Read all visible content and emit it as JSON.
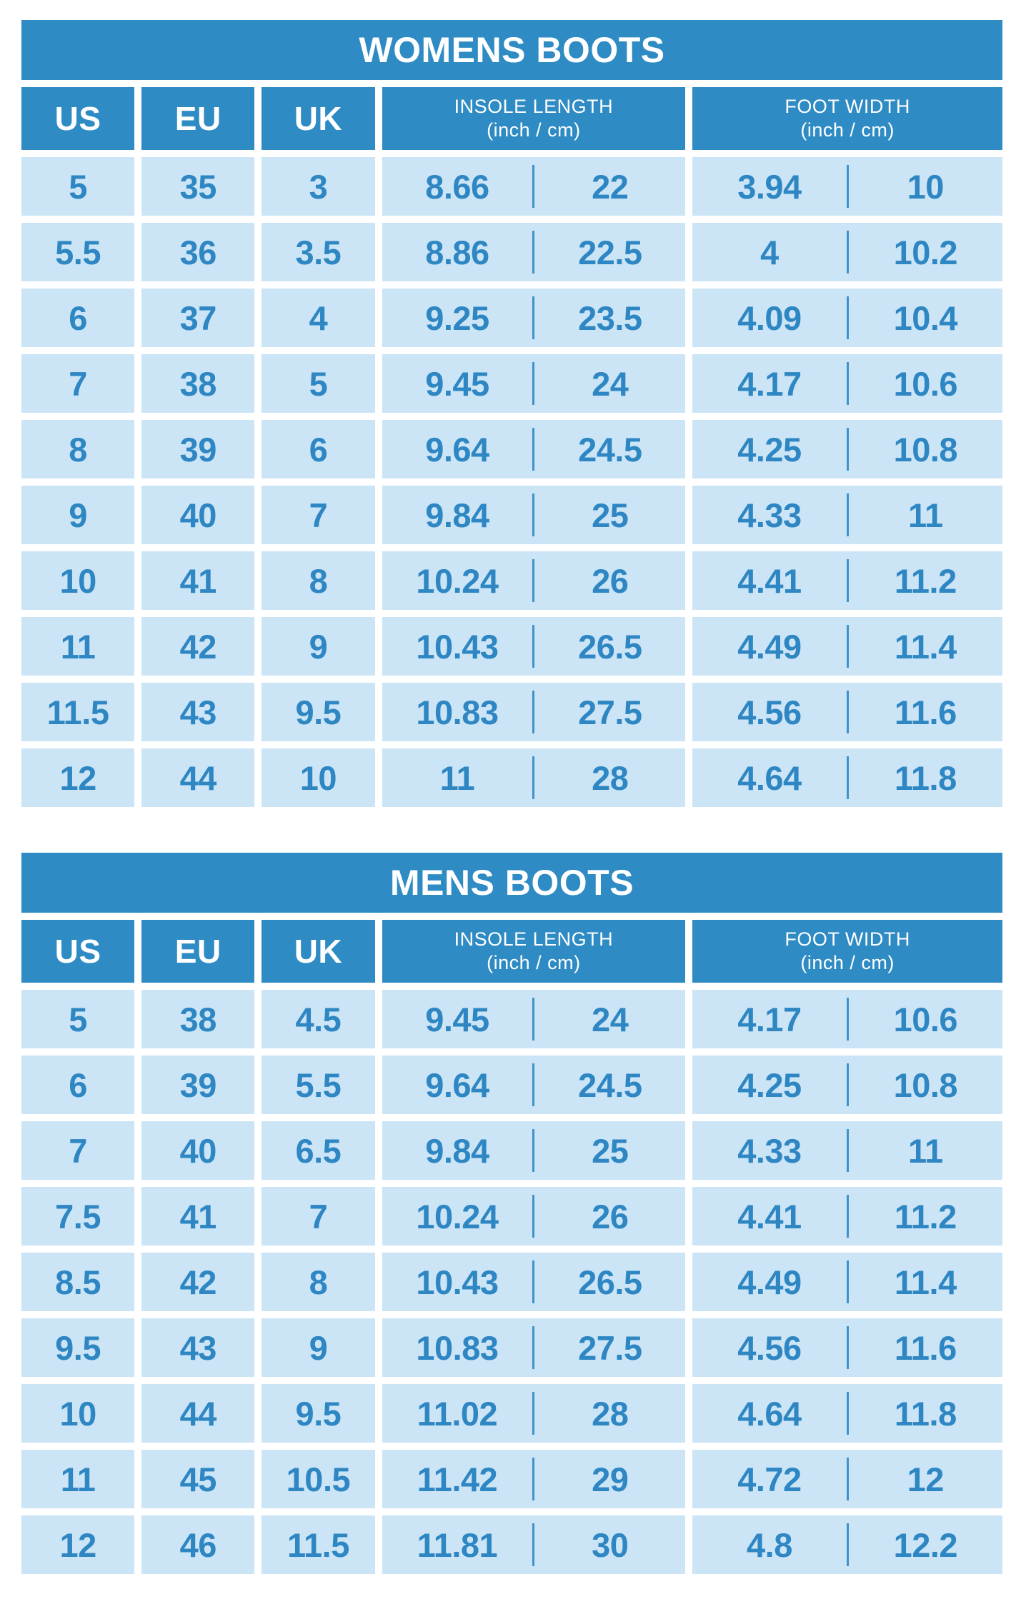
{
  "colors": {
    "header_blue": "#2E8BC4",
    "cell_light_blue": "#CBE5F6",
    "value_text_blue": "#2E86C3",
    "title_text_white": "#FFFFFF",
    "page_background": "#FFFFFF"
  },
  "tables": [
    {
      "title": "WOMENS BOOTS",
      "headers": {
        "us": "US",
        "eu": "EU",
        "uk": "UK",
        "insole_label": "INSOLE LENGTH",
        "insole_units": "(inch / cm)",
        "width_label": "FOOT WIDTH",
        "width_units": "(inch / cm)"
      },
      "rows": [
        [
          "5",
          "35",
          "3",
          "8.66",
          "22",
          "3.94",
          "10"
        ],
        [
          "5.5",
          "36",
          "3.5",
          "8.86",
          "22.5",
          "4",
          "10.2"
        ],
        [
          "6",
          "37",
          "4",
          "9.25",
          "23.5",
          "4.09",
          "10.4"
        ],
        [
          "7",
          "38",
          "5",
          "9.45",
          "24",
          "4.17",
          "10.6"
        ],
        [
          "8",
          "39",
          "6",
          "9.64",
          "24.5",
          "4.25",
          "10.8"
        ],
        [
          "9",
          "40",
          "7",
          "9.84",
          "25",
          "4.33",
          "11"
        ],
        [
          "10",
          "41",
          "8",
          "10.24",
          "26",
          "4.41",
          "11.2"
        ],
        [
          "11",
          "42",
          "9",
          "10.43",
          "26.5",
          "4.49",
          "11.4"
        ],
        [
          "11.5",
          "43",
          "9.5",
          "10.83",
          "27.5",
          "4.56",
          "11.6"
        ],
        [
          "12",
          "44",
          "10",
          "11",
          "28",
          "4.64",
          "11.8"
        ]
      ]
    },
    {
      "title": "MENS BOOTS",
      "headers": {
        "us": "US",
        "eu": "EU",
        "uk": "UK",
        "insole_label": "INSOLE LENGTH",
        "insole_units": "(inch / cm)",
        "width_label": "FOOT WIDTH",
        "width_units": "(inch / cm)"
      },
      "rows": [
        [
          "5",
          "38",
          "4.5",
          "9.45",
          "24",
          "4.17",
          "10.6"
        ],
        [
          "6",
          "39",
          "5.5",
          "9.64",
          "24.5",
          "4.25",
          "10.8"
        ],
        [
          "7",
          "40",
          "6.5",
          "9.84",
          "25",
          "4.33",
          "11"
        ],
        [
          "7.5",
          "41",
          "7",
          "10.24",
          "26",
          "4.41",
          "11.2"
        ],
        [
          "8.5",
          "42",
          "8",
          "10.43",
          "26.5",
          "4.49",
          "11.4"
        ],
        [
          "9.5",
          "43",
          "9",
          "10.83",
          "27.5",
          "4.56",
          "11.6"
        ],
        [
          "10",
          "44",
          "9.5",
          "11.02",
          "28",
          "4.64",
          "11.8"
        ],
        [
          "11",
          "45",
          "10.5",
          "11.42",
          "29",
          "4.72",
          "12"
        ],
        [
          "12",
          "46",
          "11.5",
          "11.81",
          "30",
          "4.8",
          "12.2"
        ]
      ]
    }
  ]
}
